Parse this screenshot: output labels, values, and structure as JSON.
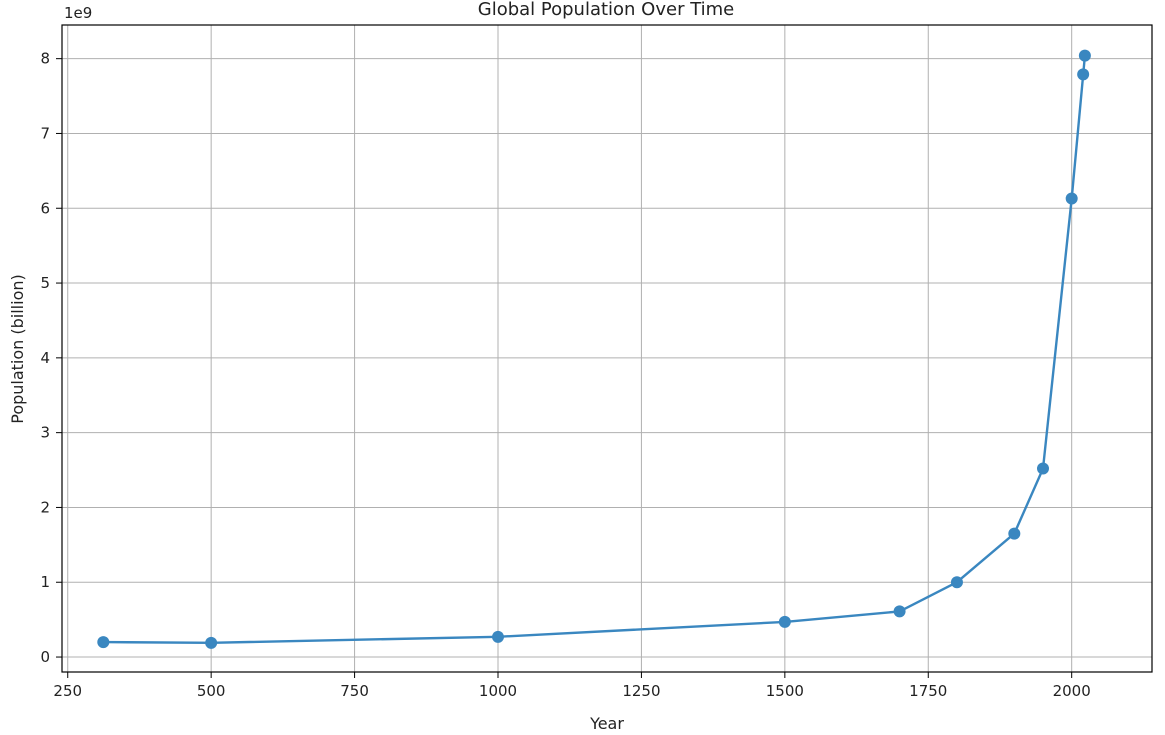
{
  "chart_data": {
    "type": "line",
    "title": "Global Population Over Time",
    "xlabel": "Year",
    "ylabel": "Population (billion)",
    "y_offset_label": "1e9",
    "xlim": [
      240,
      2140
    ],
    "ylim": [
      -0.2,
      8.45
    ],
    "x_ticks": [
      250,
      500,
      750,
      1000,
      1250,
      1500,
      1750,
      2000
    ],
    "y_ticks": [
      0,
      1,
      2,
      3,
      4,
      5,
      6,
      7,
      8
    ],
    "grid": true,
    "line_color": "#3a87c0",
    "series": [
      {
        "marker": "circle",
        "x": [
          312,
          500,
          1000,
          1500,
          1700,
          1800,
          1900,
          1950,
          2000,
          2020,
          2023
        ],
        "y": [
          0.2,
          0.19,
          0.27,
          0.47,
          0.61,
          1.0,
          1.65,
          2.52,
          6.13,
          7.79,
          8.04
        ]
      }
    ]
  }
}
